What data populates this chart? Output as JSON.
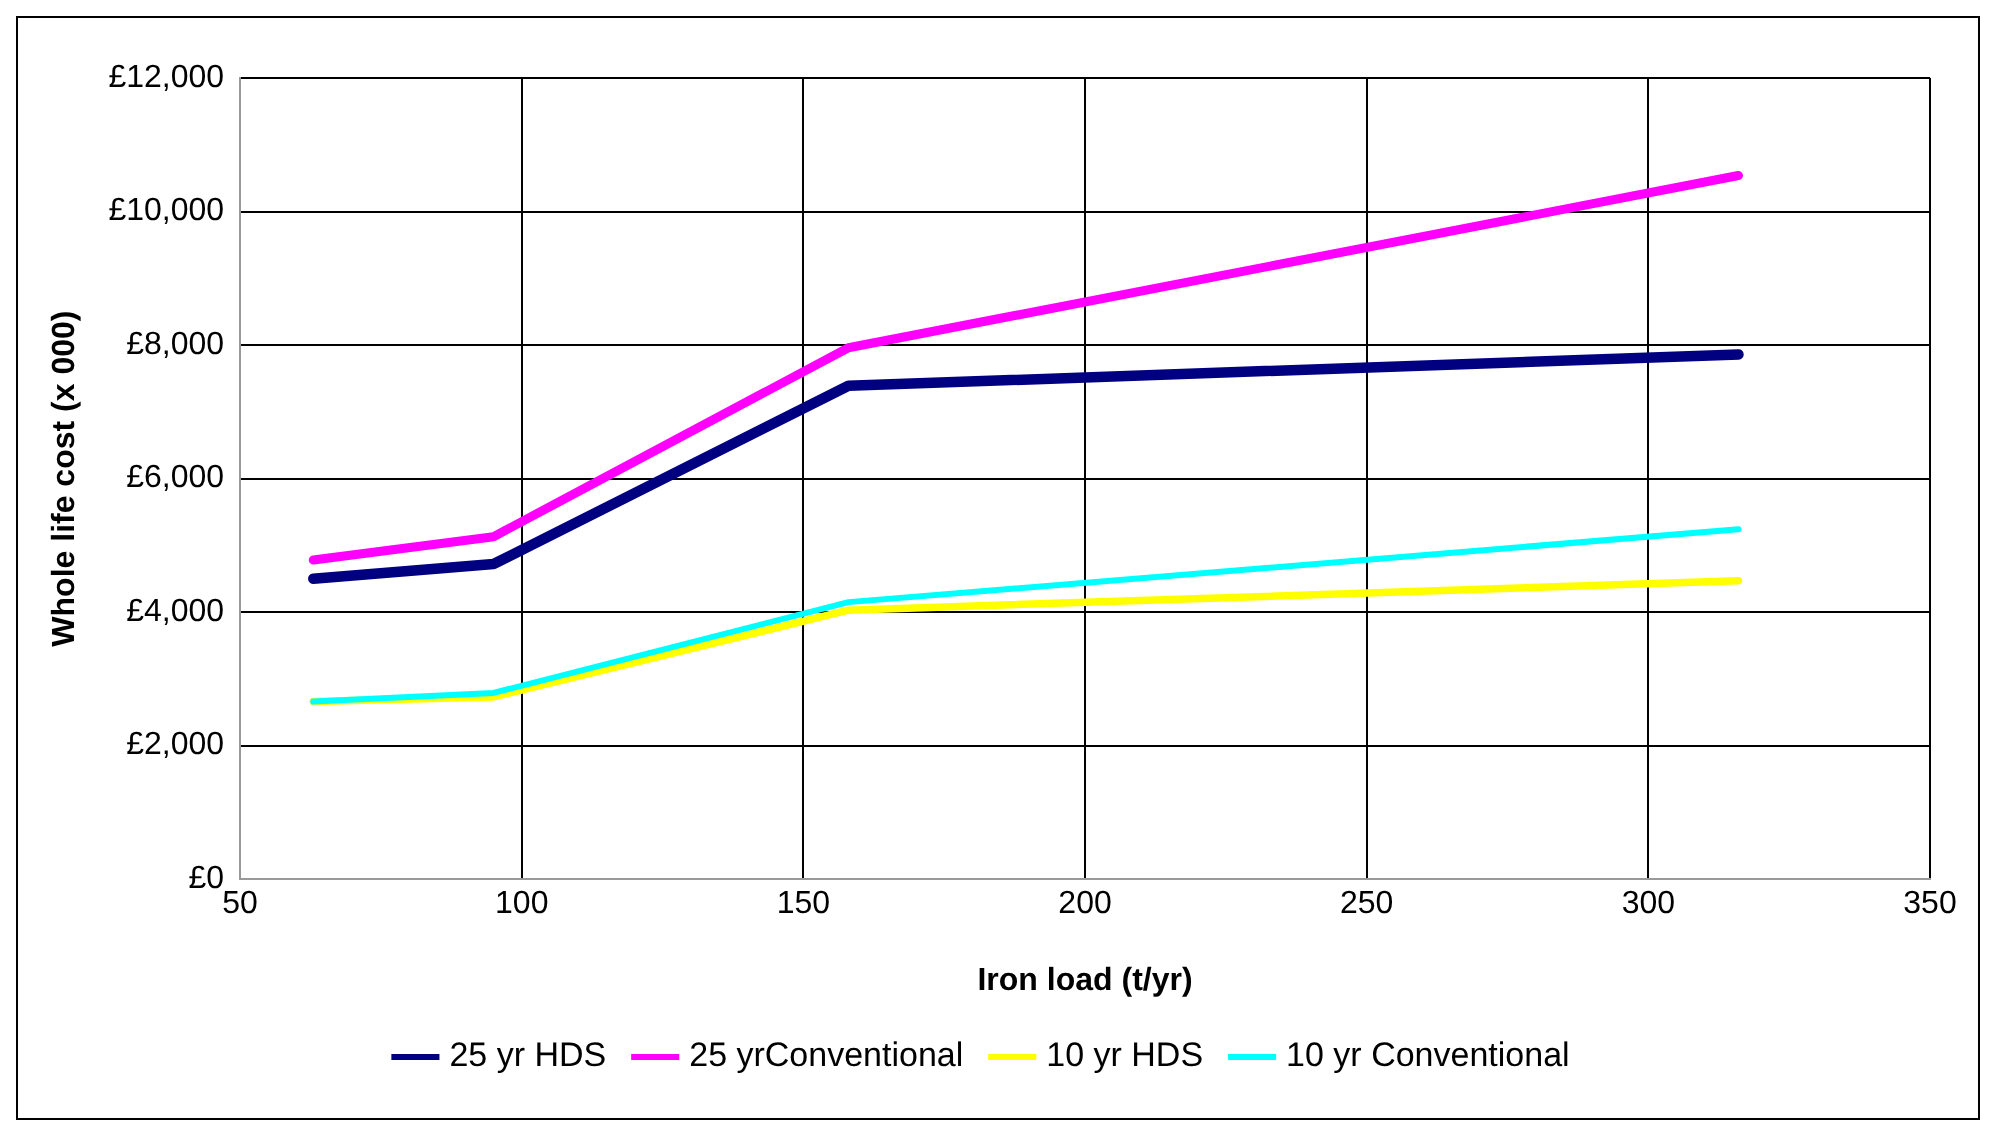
{
  "chart_data": {
    "type": "line",
    "xlabel": "Iron load (t/yr)",
    "ylabel": "Whole life cost (x 000)",
    "x": [
      63,
      95,
      158,
      316
    ],
    "series": [
      {
        "name": "25 yr HDS",
        "color": "#000080",
        "values": [
          4500,
          4720,
          7390,
          7860
        ]
      },
      {
        "name": "25 yrConventional",
        "color": "#ff00ff",
        "values": [
          4780,
          5130,
          7960,
          10540
        ]
      },
      {
        "name": "10 yr HDS",
        "color": "#ffff00",
        "values": [
          2660,
          2730,
          4030,
          4470
        ]
      },
      {
        "name": "10 yr Conventional",
        "color": "#00ffff",
        "values": [
          2660,
          2790,
          4150,
          5240
        ]
      }
    ],
    "xlim": [
      50,
      350
    ],
    "xticks": [
      50,
      100,
      150,
      200,
      250,
      300,
      350
    ],
    "ylim": [
      0,
      12000
    ],
    "yticks": [
      {
        "value": 0,
        "label": "£0"
      },
      {
        "value": 2000,
        "label": "£2,000"
      },
      {
        "value": 4000,
        "label": "£4,000"
      },
      {
        "value": 6000,
        "label": "£6,000"
      },
      {
        "value": 8000,
        "label": "£8,000"
      },
      {
        "value": 10000,
        "label": "£10,000"
      },
      {
        "value": 12000,
        "label": "£12,000"
      }
    ],
    "grid": true,
    "legend": "bottom",
    "marker": "none",
    "line_style": "solid"
  }
}
